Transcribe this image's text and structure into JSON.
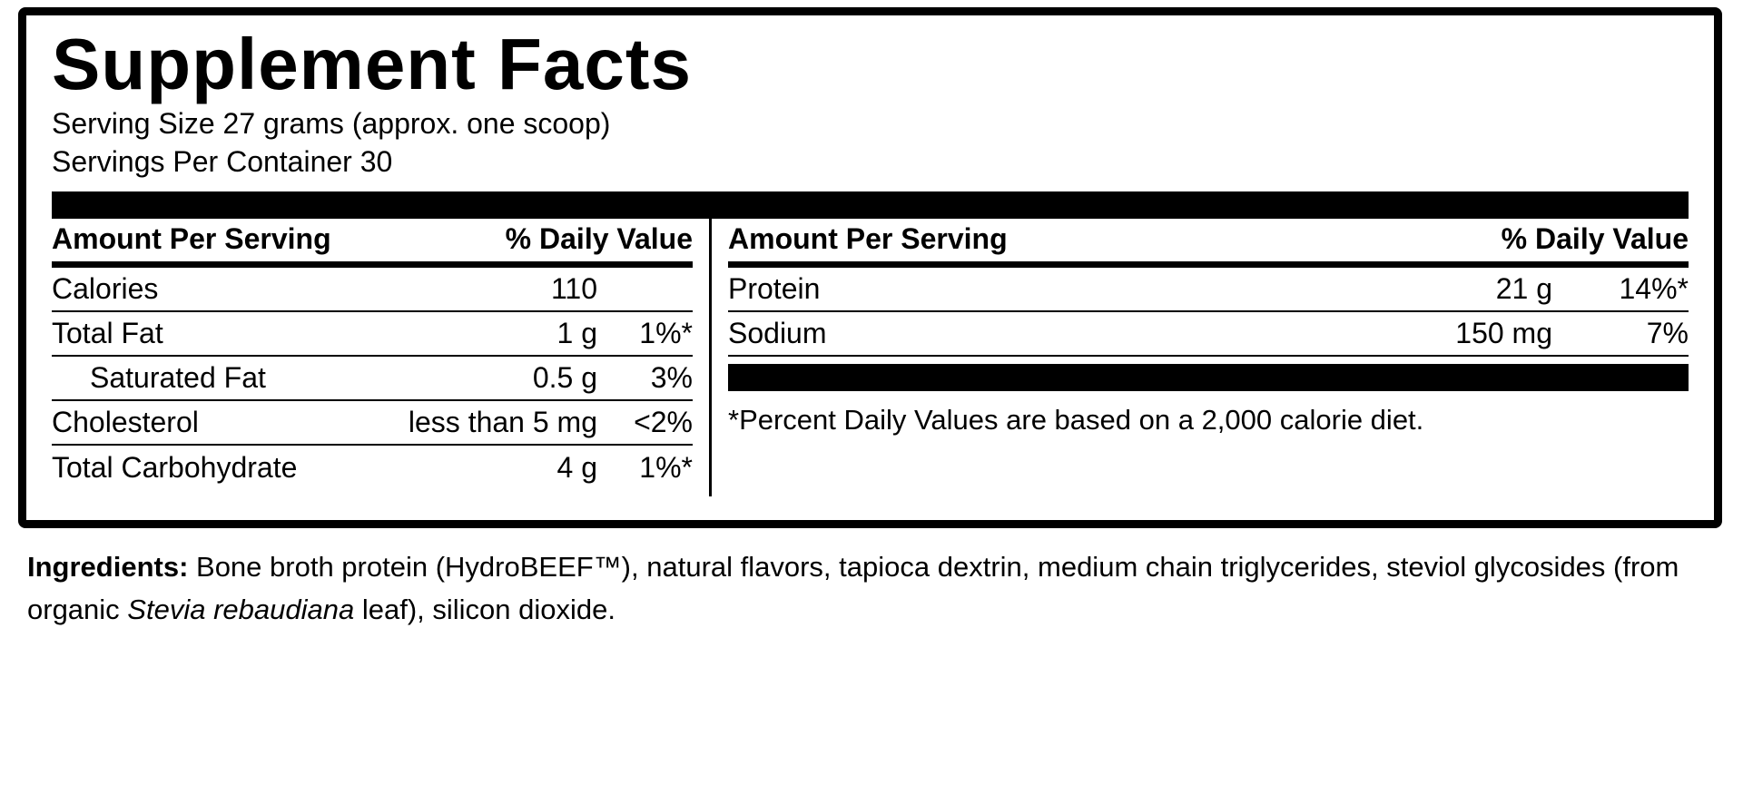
{
  "label": {
    "title": "Supplement Facts",
    "serving_size": "Serving Size 27 grams (approx. one scoop)",
    "servings_per_container": "Servings Per Container 30",
    "column_header_amount": "Amount Per Serving",
    "column_header_dv": "% Daily Value",
    "left_rows": [
      {
        "name": "Calories",
        "amount": "110",
        "dv": ""
      },
      {
        "name": "Total Fat",
        "amount": "1 g",
        "dv": "1%*"
      },
      {
        "name": "Saturated Fat",
        "amount": "0.5 g",
        "dv": "3%"
      },
      {
        "name": "Cholesterol",
        "amount": "less than 5 mg",
        "dv": "<2%"
      },
      {
        "name": "Total Carbohydrate",
        "amount": "4 g",
        "dv": "1%*"
      }
    ],
    "right_rows": [
      {
        "name": "Protein",
        "amount": "21 g",
        "dv": "14%*"
      },
      {
        "name": "Sodium",
        "amount": "150 mg",
        "dv": "7%"
      }
    ],
    "footnote": "*Percent Daily Values are based on a 2,000 calorie diet.",
    "ingredients": {
      "label": "Ingredients:",
      "text_part1": " Bone broth protein (HydroBEEF™), natural flavors, tapioca dextrin, medium chain triglycerides, steviol glycosides (from organic ",
      "italic_species": "Stevia rebaudiana",
      "text_part2": " leaf), silicon dioxide."
    },
    "colors": {
      "ink": "#000000",
      "background": "#ffffff"
    }
  }
}
